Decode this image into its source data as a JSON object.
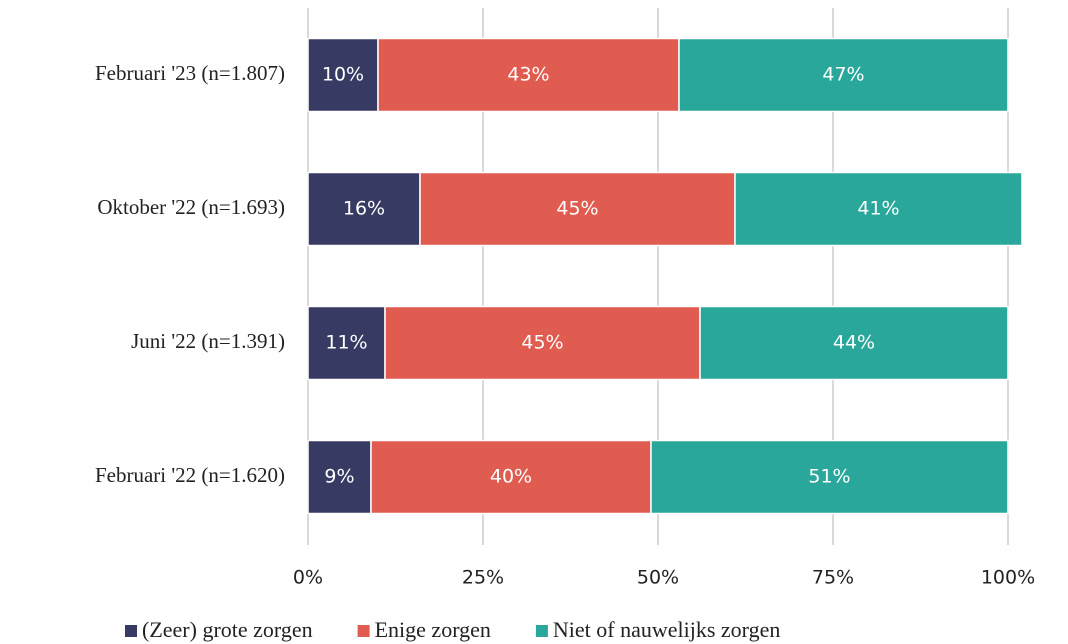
{
  "chart_data": {
    "type": "stacked-bar-horizontal",
    "categories": [
      "Februari '23 (n=1.807)",
      "Oktober '22 (n=1.693)",
      "Juni '22 (n=1.391)",
      "Februari '22 (n=1.620)"
    ],
    "series": [
      {
        "name": "(Zeer) grote zorgen",
        "color": "#373a63",
        "values": [
          10,
          16,
          11,
          9
        ],
        "value_labels": [
          "10%",
          "16%",
          "11%",
          "9%"
        ]
      },
      {
        "name": "Enige zorgen",
        "color": "#e05c50",
        "values": [
          43,
          45,
          45,
          40
        ],
        "value_labels": [
          "43%",
          "45%",
          "45%",
          "40%"
        ]
      },
      {
        "name": "Niet of nauwelijks zorgen",
        "color": "#2aa79b",
        "values": [
          47,
          41,
          44,
          51
        ],
        "value_labels": [
          "47%",
          "41%",
          "44%",
          "51%"
        ]
      }
    ],
    "xlim": [
      0,
      100
    ],
    "xticks": [
      {
        "value": 0,
        "label": "0%"
      },
      {
        "value": 25,
        "label": "25%"
      },
      {
        "value": 50,
        "label": "50%"
      },
      {
        "value": 75,
        "label": "75%"
      },
      {
        "value": 100,
        "label": "100%"
      }
    ],
    "grid": true,
    "legend": "bottom"
  }
}
